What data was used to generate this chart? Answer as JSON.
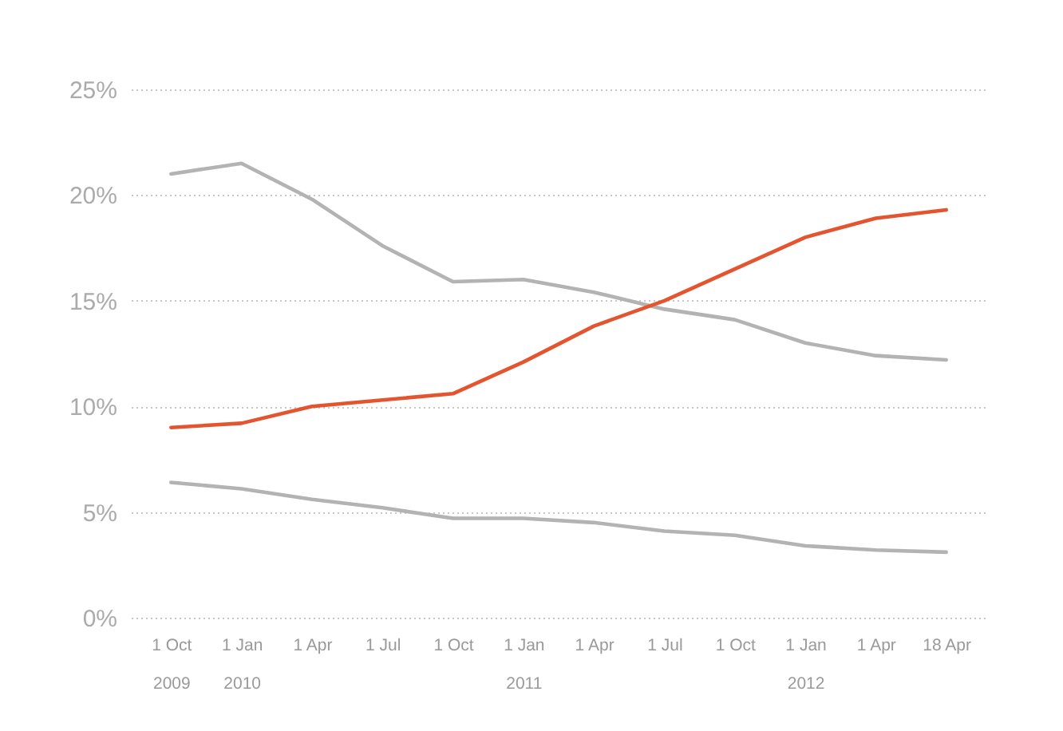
{
  "chart_data": {
    "type": "line",
    "categories": [
      "1 Oct\n2009",
      "1 Jan\n2010",
      "1 Apr",
      "1 Jul",
      "1 Oct",
      "1 Jan\n2011",
      "1 Apr",
      "1 Jul",
      "1 Oct",
      "1 Jan\n2012",
      "1 Apr",
      "18 Apr"
    ],
    "series": [
      {
        "color": "#b3b3b3",
        "values": [
          21.0,
          21.5,
          19.8,
          17.6,
          15.9,
          16.0,
          15.4,
          14.6,
          14.1,
          13.0,
          12.4,
          12.2
        ]
      },
      {
        "color": "#e4542f",
        "values": [
          9.0,
          9.2,
          10.0,
          10.3,
          10.6,
          12.1,
          13.8,
          15.0,
          16.5,
          18.0,
          18.9,
          19.3
        ]
      },
      {
        "color": "#b3b3b3",
        "values": [
          6.4,
          6.1,
          5.6,
          5.2,
          4.7,
          4.7,
          4.5,
          4.1,
          3.9,
          3.4,
          3.2,
          3.1
        ]
      }
    ],
    "ylim": [
      0,
      25
    ],
    "yticks": [
      {
        "value": 0,
        "label": "0%"
      },
      {
        "value": 5,
        "label": "5%"
      },
      {
        "value": 10,
        "label": "10%"
      },
      {
        "value": 15,
        "label": "15%"
      },
      {
        "value": 20,
        "label": "20%"
      },
      {
        "value": 25,
        "label": "25%"
      }
    ],
    "grid": "y",
    "line_style": "solid"
  }
}
